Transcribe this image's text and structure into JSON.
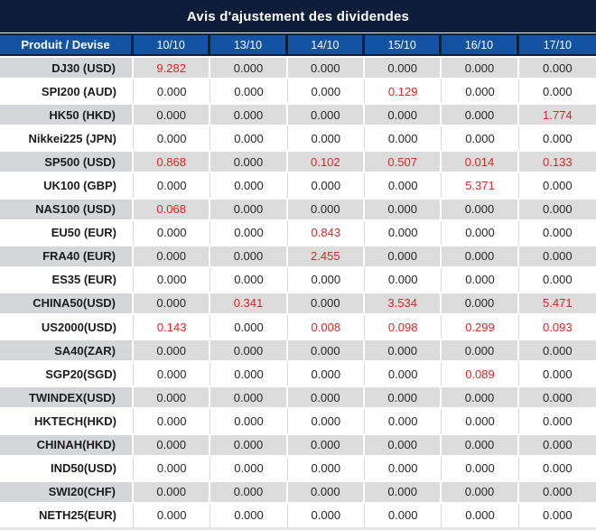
{
  "title": "Avis d'ajustement des dividendes",
  "colors": {
    "title_bg": "#0d1d3a",
    "header_bg": "#1253a3",
    "header_text": "#ffffff",
    "stripe_gray": "#dcdcdc",
    "label_gray": "#d4d6d9",
    "row_white": "#ffffff",
    "grid_light": "#d9d9d9",
    "value_text": "#262626",
    "highlight_red": "#e02424"
  },
  "chart_data": {
    "type": "table",
    "title": "Avis d'ajustement des dividendes",
    "columns": [
      "Produit / Devise",
      "10/10",
      "13/10",
      "14/10",
      "15/10",
      "16/10",
      "17/10"
    ],
    "rows": [
      {
        "product": "DJ30 (USD)",
        "values": [
          "9.282",
          "0.000",
          "0.000",
          "0.000",
          "0.000",
          "0.000"
        ],
        "highlight": [
          true,
          false,
          false,
          false,
          false,
          false
        ]
      },
      {
        "product": "SPI200 (AUD)",
        "values": [
          "0.000",
          "0.000",
          "0.000",
          "0.129",
          "0.000",
          "0.000"
        ],
        "highlight": [
          false,
          false,
          false,
          true,
          false,
          false
        ]
      },
      {
        "product": "HK50 (HKD)",
        "values": [
          "0.000",
          "0.000",
          "0.000",
          "0.000",
          "0.000",
          "1.774"
        ],
        "highlight": [
          false,
          false,
          false,
          false,
          false,
          true
        ]
      },
      {
        "product": "Nikkei225 (JPN)",
        "values": [
          "0.000",
          "0.000",
          "0.000",
          "0.000",
          "0.000",
          "0.000"
        ],
        "highlight": [
          false,
          false,
          false,
          false,
          false,
          false
        ]
      },
      {
        "product": "SP500 (USD)",
        "values": [
          "0.868",
          "0.000",
          "0.102",
          "0.507",
          "0.014",
          "0.133"
        ],
        "highlight": [
          true,
          false,
          true,
          true,
          true,
          true
        ]
      },
      {
        "product": "UK100 (GBP)",
        "values": [
          "0.000",
          "0.000",
          "0.000",
          "0.000",
          "5.371",
          "0.000"
        ],
        "highlight": [
          false,
          false,
          false,
          false,
          true,
          false
        ]
      },
      {
        "product": "NAS100 (USD)",
        "values": [
          "0.068",
          "0.000",
          "0.000",
          "0.000",
          "0.000",
          "0.000"
        ],
        "highlight": [
          true,
          false,
          false,
          false,
          false,
          false
        ]
      },
      {
        "product": "EU50 (EUR)",
        "values": [
          "0.000",
          "0.000",
          "0.843",
          "0.000",
          "0.000",
          "0.000"
        ],
        "highlight": [
          false,
          false,
          true,
          false,
          false,
          false
        ]
      },
      {
        "product": "FRA40 (EUR)",
        "values": [
          "0.000",
          "0.000",
          "2.455",
          "0.000",
          "0.000",
          "0.000"
        ],
        "highlight": [
          false,
          false,
          true,
          false,
          false,
          false
        ]
      },
      {
        "product": "ES35 (EUR)",
        "values": [
          "0.000",
          "0.000",
          "0.000",
          "0.000",
          "0.000",
          "0.000"
        ],
        "highlight": [
          false,
          false,
          false,
          false,
          false,
          false
        ]
      },
      {
        "product": "CHINA50(USD)",
        "values": [
          "0.000",
          "0.341",
          "0.000",
          "3.534",
          "0.000",
          "5.471"
        ],
        "highlight": [
          false,
          true,
          false,
          true,
          false,
          true
        ]
      },
      {
        "product": "US2000(USD)",
        "values": [
          "0.143",
          "0.000",
          "0.008",
          "0.098",
          "0.299",
          "0.093"
        ],
        "highlight": [
          true,
          false,
          true,
          true,
          true,
          true
        ]
      },
      {
        "product": "SA40(ZAR)",
        "values": [
          "0.000",
          "0.000",
          "0.000",
          "0.000",
          "0.000",
          "0.000"
        ],
        "highlight": [
          false,
          false,
          false,
          false,
          false,
          false
        ]
      },
      {
        "product": "SGP20(SGD)",
        "values": [
          "0.000",
          "0.000",
          "0.000",
          "0.000",
          "0.089",
          "0.000"
        ],
        "highlight": [
          false,
          false,
          false,
          false,
          true,
          false
        ]
      },
      {
        "product": "TWINDEX(USD)",
        "values": [
          "0.000",
          "0.000",
          "0.000",
          "0.000",
          "0.000",
          "0.000"
        ],
        "highlight": [
          false,
          false,
          false,
          false,
          false,
          false
        ]
      },
      {
        "product": "HKTECH(HKD)",
        "values": [
          "0.000",
          "0.000",
          "0.000",
          "0.000",
          "0.000",
          "0.000"
        ],
        "highlight": [
          false,
          false,
          false,
          false,
          false,
          false
        ]
      },
      {
        "product": "CHINAH(HKD)",
        "values": [
          "0.000",
          "0.000",
          "0.000",
          "0.000",
          "0.000",
          "0.000"
        ],
        "highlight": [
          false,
          false,
          false,
          false,
          false,
          false
        ]
      },
      {
        "product": "IND50(USD)",
        "values": [
          "0.000",
          "0.000",
          "0.000",
          "0.000",
          "0.000",
          "0.000"
        ],
        "highlight": [
          false,
          false,
          false,
          false,
          false,
          false
        ]
      },
      {
        "product": "SWI20(CHF)",
        "values": [
          "0.000",
          "0.000",
          "0.000",
          "0.000",
          "0.000",
          "0.000"
        ],
        "highlight": [
          false,
          false,
          false,
          false,
          false,
          false
        ]
      },
      {
        "product": "NETH25(EUR)",
        "values": [
          "0.000",
          "0.000",
          "0.000",
          "0.000",
          "0.000",
          "0.000"
        ],
        "highlight": [
          false,
          false,
          false,
          false,
          false,
          false
        ]
      }
    ]
  }
}
